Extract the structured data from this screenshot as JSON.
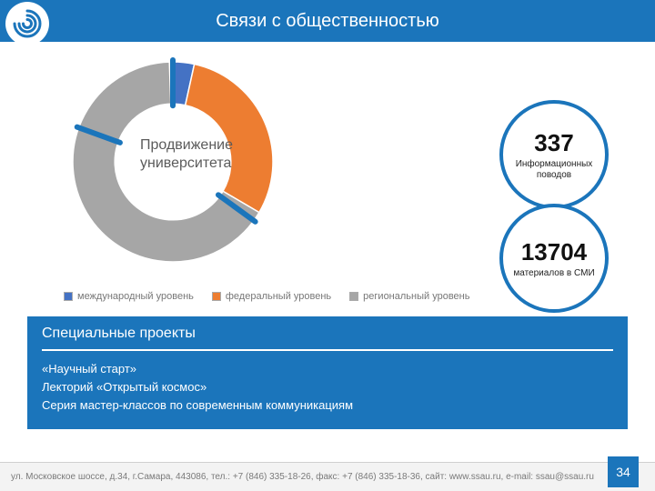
{
  "colors": {
    "brand": "#1b75bb",
    "gray": "#a6a6a6",
    "orange": "#ed7d31",
    "blue_small": "#4472c4",
    "legend_text": "#777777",
    "chart_text": "#5b5b5b",
    "footer_bg": "#f3f3f3",
    "footer_text": "#7a7a7a"
  },
  "title": "Связи с общественностью",
  "donut": {
    "type": "donut",
    "center_label": "Продвижение университета",
    "series": [
      {
        "name": "международный уровень",
        "value": 4,
        "color": "#4472c4"
      },
      {
        "name": "федеральный уровень",
        "value": 30,
        "color": "#ed7d31"
      },
      {
        "name": "региональный уровень",
        "value": 66,
        "color": "#a6a6a6"
      }
    ],
    "inner_radius_pct": 58,
    "outer_radius_pct": 100,
    "start_angle_deg": -92
  },
  "tick_markers": {
    "color": "#1b75bb",
    "angles_deg": [
      -90,
      36,
      200
    ],
    "length_pct": 12
  },
  "stats": [
    {
      "value": "337",
      "label": "Информационных поводов"
    },
    {
      "value": "13704",
      "label": "материалов в СМИ"
    }
  ],
  "legend": [
    {
      "swatch": "#4472c4",
      "label": "международный уровень"
    },
    {
      "swatch": "#ed7d31",
      "label": "федеральный уровень"
    },
    {
      "swatch": "#a6a6a6",
      "label": "региональный уровень"
    }
  ],
  "projects": {
    "heading": "Специальные проекты",
    "items": [
      "«Научный старт»",
      "Лекторий «Открытый космос»",
      "Серия мастер-классов по современным коммуникациям"
    ]
  },
  "footer": {
    "text": "ул. Московское шоссе, д.34, г.Самара, 443086, тел.: +7 (846) 335-18-26, факс: +7 (846) 335-18-36, сайт: www.ssau.ru, e-mail: ssau@ssau.ru",
    "page": "34"
  }
}
